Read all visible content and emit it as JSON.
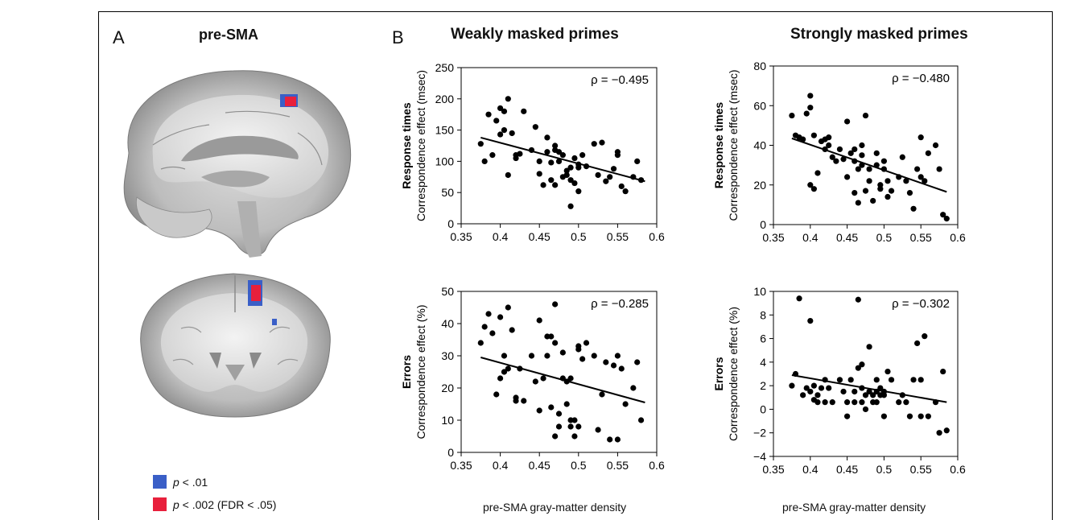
{
  "panel_a": {
    "letter": "A",
    "title": "pre-SMA",
    "legend": [
      {
        "label_italic": "p",
        "label_rest": " < .01",
        "color": "#3a5fc7"
      },
      {
        "label_italic": "p",
        "label_rest": " < .002 (FDR < .05)",
        "color": "#e8203c"
      }
    ]
  },
  "panel_b": {
    "letter": "B",
    "columns": [
      "Weakly masked primes",
      "Strongly masked primes"
    ],
    "xlabel": "pre-SMA gray-matter density"
  },
  "chart_data": [
    {
      "type": "scatter",
      "row_label": "Response times",
      "ylabel": "Correspondence effect (msec)",
      "annotation": "ρ = −0.495",
      "xlim": [
        0.35,
        0.6
      ],
      "ylim": [
        0,
        250
      ],
      "xticks": [
        "0.35",
        "0.4",
        "0.45",
        "0.5",
        "0.55",
        "0.6"
      ],
      "yticks": [
        "0",
        "50",
        "100",
        "150",
        "200",
        "250"
      ],
      "fit": {
        "x": [
          0.375,
          0.585
        ],
        "y": [
          138,
          68
        ]
      },
      "x": [
        0.375,
        0.38,
        0.385,
        0.39,
        0.395,
        0.4,
        0.4,
        0.405,
        0.405,
        0.41,
        0.41,
        0.415,
        0.42,
        0.42,
        0.425,
        0.43,
        0.44,
        0.445,
        0.45,
        0.45,
        0.455,
        0.46,
        0.46,
        0.465,
        0.465,
        0.47,
        0.47,
        0.47,
        0.475,
        0.475,
        0.48,
        0.48,
        0.485,
        0.485,
        0.49,
        0.49,
        0.49,
        0.495,
        0.495,
        0.5,
        0.5,
        0.5,
        0.505,
        0.51,
        0.52,
        0.525,
        0.53,
        0.535,
        0.54,
        0.545,
        0.55,
        0.55,
        0.555,
        0.56,
        0.57,
        0.575,
        0.58
      ],
      "y": [
        128,
        100,
        175,
        110,
        165,
        143,
        185,
        150,
        180,
        78,
        200,
        145,
        105,
        110,
        112,
        180,
        118,
        155,
        100,
        80,
        62,
        115,
        138,
        98,
        70,
        125,
        118,
        62,
        100,
        115,
        110,
        75,
        85,
        78,
        70,
        28,
        90,
        105,
        65,
        95,
        90,
        52,
        110,
        92,
        128,
        78,
        130,
        68,
        75,
        88,
        115,
        110,
        60,
        52,
        75,
        100,
        70
      ]
    },
    {
      "type": "scatter",
      "row_label": "Response times",
      "ylabel": "Correspondence effect (msec)",
      "annotation": "ρ = −0.480",
      "xlim": [
        0.35,
        0.6
      ],
      "ylim": [
        0,
        80
      ],
      "xticks": [
        "0.35",
        "0.4",
        "0.45",
        "0.5",
        "0.55",
        "0.6"
      ],
      "yticks": [
        "0",
        "20",
        "40",
        "60",
        "80"
      ],
      "fit": {
        "x": [
          0.375,
          0.585
        ],
        "y": [
          43.5,
          16.5
        ]
      },
      "x": [
        0.375,
        0.38,
        0.385,
        0.39,
        0.395,
        0.4,
        0.4,
        0.4,
        0.405,
        0.405,
        0.41,
        0.415,
        0.42,
        0.42,
        0.425,
        0.425,
        0.43,
        0.435,
        0.44,
        0.445,
        0.45,
        0.45,
        0.455,
        0.46,
        0.46,
        0.46,
        0.465,
        0.465,
        0.47,
        0.47,
        0.47,
        0.475,
        0.475,
        0.48,
        0.48,
        0.485,
        0.49,
        0.49,
        0.495,
        0.495,
        0.5,
        0.5,
        0.505,
        0.505,
        0.51,
        0.52,
        0.525,
        0.53,
        0.535,
        0.54,
        0.545,
        0.55,
        0.55,
        0.555,
        0.56,
        0.57,
        0.575,
        0.58,
        0.585
      ],
      "y": [
        55,
        45,
        44,
        43,
        56,
        59,
        20,
        65,
        45,
        18,
        26,
        42,
        43,
        38,
        44,
        40,
        34,
        32,
        38,
        33,
        52,
        24,
        36,
        32,
        16,
        38,
        28,
        11,
        40,
        35,
        30,
        17,
        55,
        28,
        22,
        12,
        36,
        30,
        20,
        18,
        32,
        28,
        22,
        14,
        17,
        24,
        34,
        22,
        16,
        8,
        28,
        24,
        44,
        22,
        36,
        40,
        28,
        5,
        3
      ]
    },
    {
      "type": "scatter",
      "row_label": "Errors",
      "ylabel": "Correspondence effect (%)",
      "annotation": "ρ = −0.285",
      "xlim": [
        0.35,
        0.6
      ],
      "ylim": [
        0,
        50
      ],
      "xticks": [
        "0.35",
        "0.4",
        "0.45",
        "0.5",
        "0.55",
        "0.6"
      ],
      "yticks": [
        "0",
        "10",
        "20",
        "30",
        "40",
        "50"
      ],
      "fit": {
        "x": [
          0.375,
          0.585
        ],
        "y": [
          29.5,
          15.5
        ]
      },
      "x": [
        0.375,
        0.38,
        0.385,
        0.39,
        0.395,
        0.4,
        0.4,
        0.405,
        0.405,
        0.41,
        0.41,
        0.415,
        0.42,
        0.42,
        0.425,
        0.43,
        0.44,
        0.445,
        0.45,
        0.45,
        0.455,
        0.46,
        0.46,
        0.465,
        0.465,
        0.47,
        0.47,
        0.47,
        0.475,
        0.475,
        0.48,
        0.48,
        0.485,
        0.485,
        0.49,
        0.49,
        0.49,
        0.495,
        0.495,
        0.5,
        0.5,
        0.5,
        0.505,
        0.51,
        0.52,
        0.525,
        0.53,
        0.535,
        0.54,
        0.545,
        0.55,
        0.55,
        0.555,
        0.56,
        0.57,
        0.575,
        0.58
      ],
      "y": [
        34,
        39,
        43,
        37,
        18,
        23,
        42,
        25,
        30,
        45,
        26,
        38,
        16,
        17,
        26,
        16,
        30,
        22,
        41,
        13,
        23,
        30,
        36,
        36,
        14,
        46,
        34,
        5,
        12,
        8,
        31,
        23,
        22,
        15,
        23,
        10,
        8,
        10,
        5,
        33,
        8,
        32,
        29,
        34,
        30,
        7,
        18,
        28,
        4,
        27,
        30,
        4,
        26,
        15,
        20,
        28,
        10
      ]
    },
    {
      "type": "scatter",
      "row_label": "Errors",
      "ylabel": "Correspondence effect (%)",
      "annotation": "ρ = −0.302",
      "xlim": [
        0.35,
        0.6
      ],
      "ylim": [
        -4,
        10
      ],
      "xticks": [
        "0.35",
        "0.4",
        "0.45",
        "0.5",
        "0.55",
        "0.6"
      ],
      "yticks": [
        "−4",
        "−2",
        "0",
        "2",
        "4",
        "6",
        "8",
        "10"
      ],
      "fit": {
        "x": [
          0.375,
          0.585
        ],
        "y": [
          2.9,
          0.6
        ]
      },
      "x": [
        0.375,
        0.38,
        0.385,
        0.39,
        0.395,
        0.4,
        0.4,
        0.405,
        0.405,
        0.41,
        0.41,
        0.415,
        0.42,
        0.42,
        0.425,
        0.43,
        0.44,
        0.445,
        0.45,
        0.45,
        0.455,
        0.46,
        0.46,
        0.465,
        0.465,
        0.47,
        0.47,
        0.47,
        0.475,
        0.475,
        0.48,
        0.48,
        0.485,
        0.485,
        0.49,
        0.49,
        0.49,
        0.495,
        0.495,
        0.5,
        0.5,
        0.5,
        0.505,
        0.51,
        0.52,
        0.525,
        0.53,
        0.535,
        0.54,
        0.545,
        0.55,
        0.55,
        0.555,
        0.56,
        0.57,
        0.575,
        0.58,
        0.585
      ],
      "y": [
        2,
        3,
        9.4,
        1.2,
        1.8,
        7.5,
        1.5,
        0.8,
        2,
        1.2,
        0.6,
        1.8,
        2.5,
        0.6,
        1.8,
        0.6,
        2.5,
        1.5,
        0.6,
        -0.6,
        2.5,
        1.5,
        0.6,
        9.3,
        3.5,
        3.8,
        1.8,
        0.6,
        0,
        1.2,
        5.3,
        1.5,
        1.2,
        0.6,
        2.5,
        1.5,
        0.6,
        1.8,
        1.2,
        1.5,
        -0.6,
        1.2,
        3.2,
        2.5,
        0.6,
        1.2,
        0.6,
        -0.6,
        2.5,
        5.6,
        -0.6,
        2.5,
        6.2,
        -0.6,
        0.6,
        -2,
        3.2,
        -1.8
      ]
    }
  ]
}
